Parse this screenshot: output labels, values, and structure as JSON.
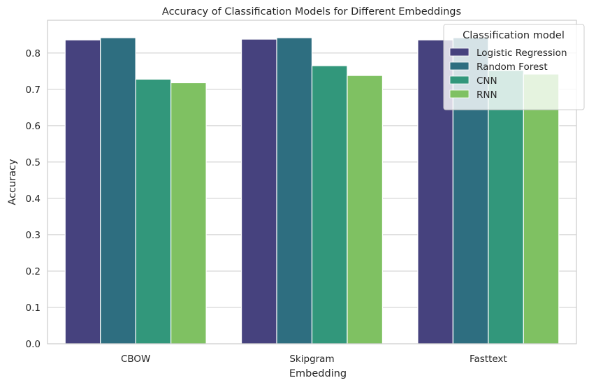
{
  "chart_data": {
    "type": "bar",
    "title": "Accuracy of Classification Models for Different Embeddings",
    "xlabel": "Embedding",
    "ylabel": "Accuracy",
    "categories": [
      "CBOW",
      "Skipgram",
      "Fasttext"
    ],
    "series": [
      {
        "name": "Logistic Regression",
        "values": [
          0.836,
          0.838,
          0.836
        ],
        "color": "#46427e"
      },
      {
        "name": "Random Forest",
        "values": [
          0.842,
          0.842,
          0.842
        ],
        "color": "#2e6e80"
      },
      {
        "name": "CNN",
        "values": [
          0.728,
          0.765,
          0.752
        ],
        "color": "#32977b"
      },
      {
        "name": "RNN",
        "values": [
          0.718,
          0.738,
          0.742
        ],
        "color": "#7fc162"
      }
    ],
    "ylim": [
      0,
      0.89
    ],
    "yticks": [
      "0.0",
      "0.1",
      "0.2",
      "0.3",
      "0.4",
      "0.5",
      "0.6",
      "0.7",
      "0.8"
    ],
    "grid": "horizontal",
    "legend": {
      "title": "Classification model",
      "placement": "top-right"
    }
  }
}
